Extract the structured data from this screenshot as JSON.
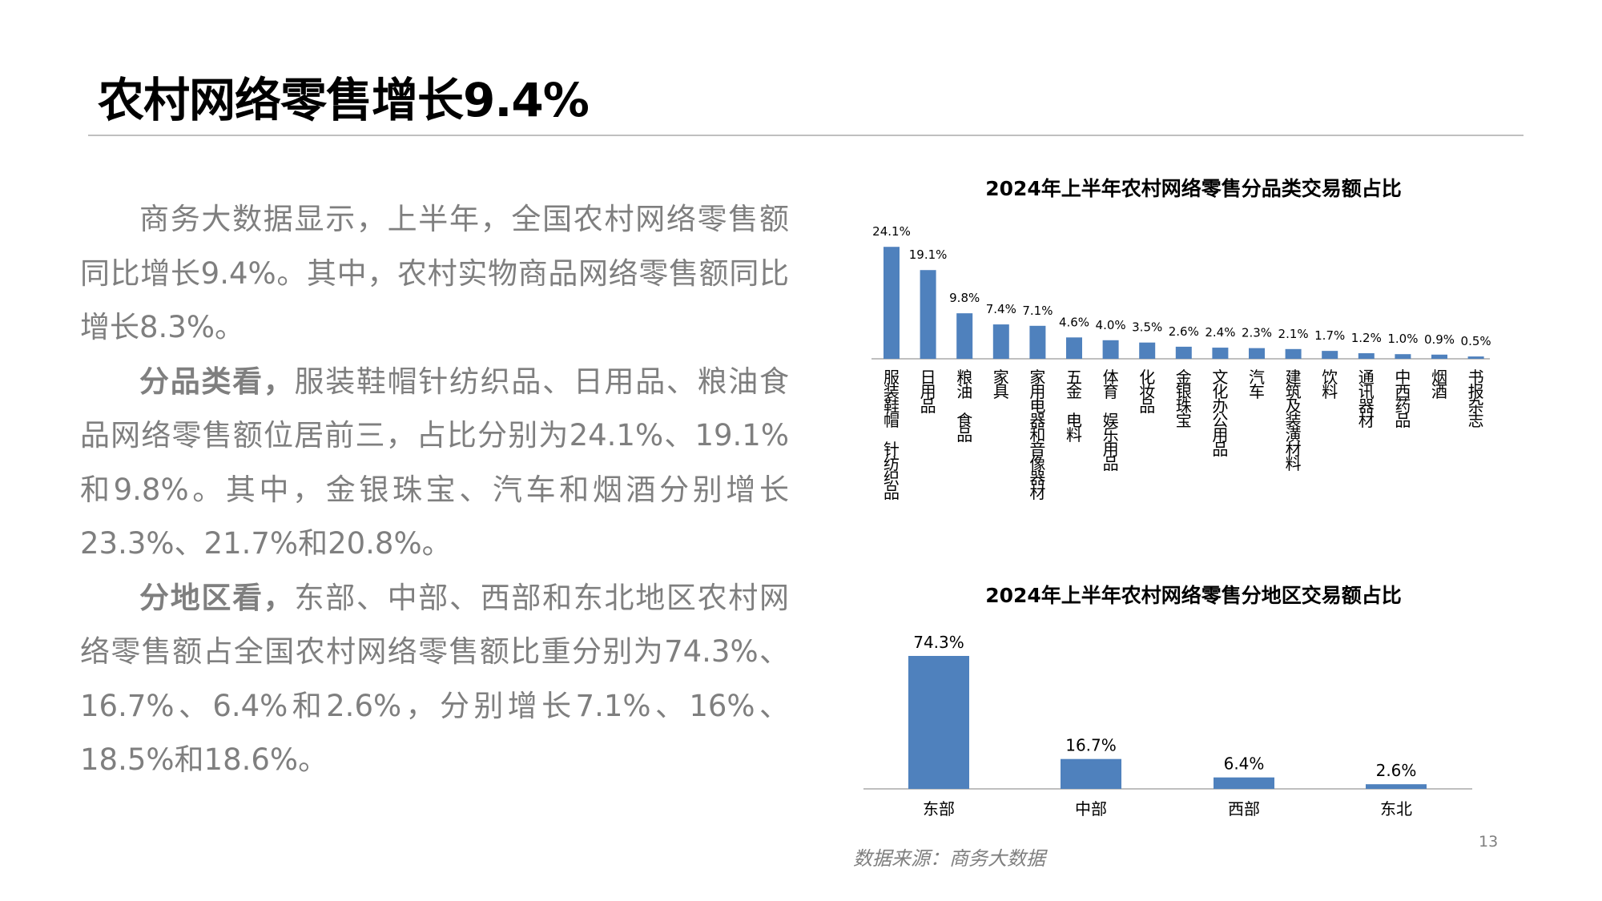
{
  "page": {
    "title": "农村网络零售增长9.4%",
    "page_number": "13",
    "source": "数据来源：商务大数据"
  },
  "body": {
    "p1": "商务大数据显示，上半年，全国农村网络零售额同比增长9.4%。其中，农村实物商品网络零售额同比增长8.3%。",
    "p2_label": "分品类看，",
    "p2": "服装鞋帽针纺织品、日用品、粮油食品网络零售额位居前三，占比分别为24.1%、19.1%和9.8%。其中，金银珠宝、汽车和烟酒分别增长23.3%、21.7%和20.8%。",
    "p3_label": "分地区看，",
    "p3": "东部、中部、西部和东北地区农村网络零售额占全国农村网络零售额比重分别为74.3%、16.7%、6.4%和2.6%，分别增长7.1%、16%、18.5%和18.6%。"
  },
  "chart_data": [
    {
      "type": "bar",
      "title": "2024年上半年农村网络零售分品类交易额占比",
      "categories": [
        "服装鞋帽 针纺织品",
        "日用品",
        "粮油 食品",
        "家具",
        "家用电器和音像器材",
        "五金 电料",
        "体育 娱乐用品",
        "化妆品",
        "金银珠宝",
        "文化办公用品",
        "汽车",
        "建筑及装潢材料",
        "饮料",
        "通讯器材",
        "中西药品",
        "烟酒",
        "书报杂志"
      ],
      "values": [
        24.1,
        19.1,
        9.8,
        7.4,
        7.1,
        4.6,
        4.0,
        3.5,
        2.6,
        2.4,
        2.3,
        2.1,
        1.7,
        1.2,
        1.0,
        0.9,
        0.5
      ],
      "labels": [
        "24.1%",
        "19.1%",
        "9.8%",
        "7.4%",
        "7.1%",
        "4.6%",
        "4.0%",
        "3.5%",
        "2.6%",
        "2.4%",
        "2.3%",
        "2.1%",
        "1.7%",
        "1.2%",
        "1.0%",
        "0.9%",
        "0.5%"
      ],
      "color": "#4f81bd",
      "xlabel": "",
      "ylabel": ""
    },
    {
      "type": "bar",
      "title": "2024年上半年农村网络零售分地区交易额占比",
      "categories": [
        "东部",
        "中部",
        "西部",
        "东北"
      ],
      "values": [
        74.3,
        16.7,
        6.4,
        2.6
      ],
      "labels": [
        "74.3%",
        "16.7%",
        "6.4%",
        "2.6%"
      ],
      "color": "#4f81bd",
      "xlabel": "",
      "ylabel": ""
    }
  ]
}
